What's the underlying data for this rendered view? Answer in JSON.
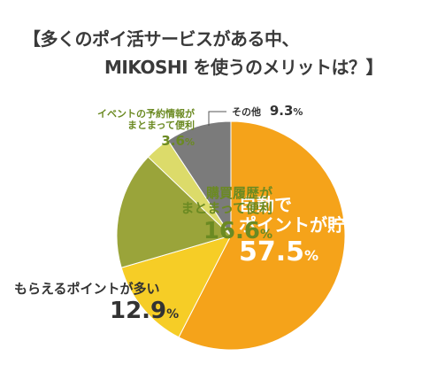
{
  "title": {
    "line1": "【多くのポイ活サービスがある中、",
    "line2": "MIKOSHI を使うのメリットは？】"
  },
  "colors": {
    "text_dark": "#333333",
    "text_green": "#6b8a22",
    "text_white": "#ffffff"
  },
  "chart_data": {
    "type": "pie",
    "unit": "%",
    "slices": [
      {
        "label_lines": [
          "自動で",
          "ポイントが貯まる"
        ],
        "value": 57.5,
        "value_text": "57.5",
        "unit_text": "%",
        "color": "#f5a31a"
      },
      {
        "label_lines": [
          "もらえるポイントが多い"
        ],
        "value": 12.9,
        "value_text": "12.9",
        "unit_text": "%",
        "color": "#f6cd26"
      },
      {
        "label_lines": [
          "購買履歴が",
          "まとまって便利"
        ],
        "value": 16.6,
        "value_text": "16.6",
        "unit_text": "%",
        "color": "#9aa43a"
      },
      {
        "label_lines": [
          "イベントの予約情報が",
          "まとまって便利"
        ],
        "value": 3.6,
        "value_text": "3.6",
        "unit_text": "%",
        "color": "#dcdb6a"
      },
      {
        "label_lines": [
          "その他"
        ],
        "value": 9.3,
        "value_text": "9.3",
        "unit_text": "%",
        "color": "#7b7b7b"
      }
    ]
  }
}
